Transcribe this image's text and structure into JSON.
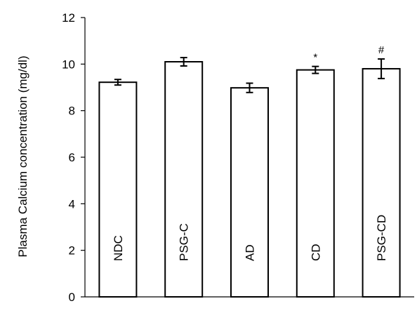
{
  "chart_data": {
    "type": "bar",
    "title": "",
    "xlabel": "",
    "ylabel": "Plasma Calcium concentration (mg/dl)",
    "ylim": [
      0,
      12
    ],
    "yticks": [
      "0",
      "2",
      "4",
      "6",
      "8",
      "10",
      "12"
    ],
    "grid": false,
    "legend": "none",
    "bar_fill": "#ffffff",
    "bar_stroke": "#000000",
    "categories": [
      "NDC",
      "PSG-C",
      "AD",
      "CD",
      "PSG-CD"
    ],
    "values": [
      9.22,
      10.1,
      8.98,
      9.75,
      9.8
    ],
    "errors": [
      0.12,
      0.18,
      0.2,
      0.15,
      0.42
    ],
    "annotations": [
      "",
      "",
      "",
      "*",
      "#"
    ]
  }
}
